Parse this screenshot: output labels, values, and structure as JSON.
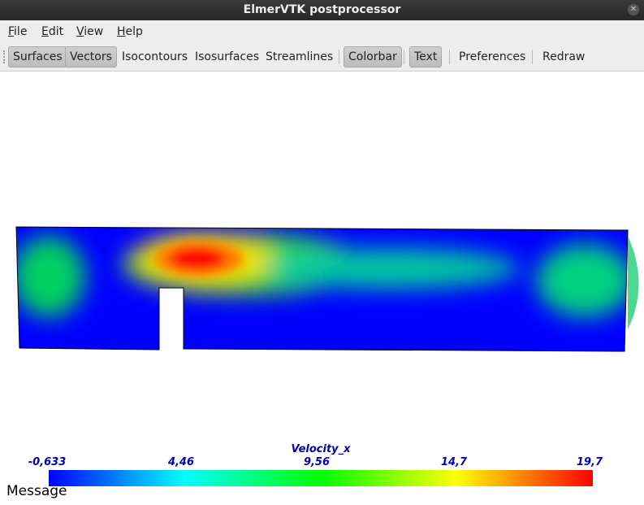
{
  "window": {
    "title": "ElmerVTK postprocessor"
  },
  "menu": [
    "File",
    "Edit",
    "View",
    "Help"
  ],
  "toolbar": [
    {
      "label": "Surfaces",
      "active": true
    },
    {
      "label": "Vectors",
      "active": true
    },
    {
      "label": "Isocontours",
      "active": false
    },
    {
      "label": "Isosurfaces",
      "active": false
    },
    {
      "label": "Streamlines",
      "active": false
    },
    {
      "label": "Colorbar",
      "active": true
    },
    {
      "label": "Text",
      "active": true
    },
    {
      "label": "Preferences",
      "active": false
    },
    {
      "label": "Redraw",
      "active": false
    }
  ],
  "colorbar": {
    "title": "Velocity_x",
    "labels": [
      "-0,633",
      "4,46",
      "9,56",
      "14,7",
      "19,7"
    ]
  },
  "status": "Message"
}
